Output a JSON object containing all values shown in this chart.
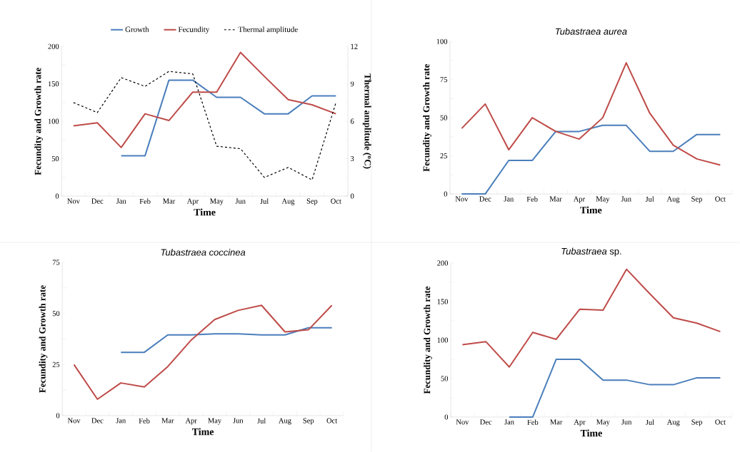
{
  "chart_data": [
    {
      "type": "line",
      "xlabel": "Time",
      "ylabel": "Fecundity and Growth rate",
      "y2label": "Thermal amplitude ($^{o}$C)",
      "categories": [
        "Nov",
        "Dec",
        "Jan",
        "Feb",
        "Mar",
        "Apr",
        "May",
        "Jun",
        "Jul",
        "Aug",
        "Sep",
        "Oct"
      ],
      "series": [
        {
          "name": "Growth",
          "color": "#4a7ebb",
          "values": [
            null,
            null,
            54,
            54,
            155,
            155,
            132,
            132,
            110,
            110,
            134,
            134
          ]
        },
        {
          "name": "Fecundity",
          "color": "#be4b48",
          "values": [
            94,
            98,
            65,
            110,
            101,
            139,
            139,
            192,
            160,
            129,
            122,
            110
          ]
        },
        {
          "name": "Thermal amplitude",
          "color": "#000000",
          "axis": "y2",
          "line_style": "dashed",
          "values": [
            7.5,
            6.7,
            9.5,
            8.8,
            10.0,
            9.8,
            4.0,
            3.8,
            1.5,
            2.3,
            1.3,
            7.5
          ]
        }
      ],
      "ylim": [
        0,
        200
      ],
      "yticks": [
        0,
        50,
        100,
        150,
        200
      ],
      "y2lim": [
        0,
        12
      ],
      "y2ticks": [
        0,
        3,
        6,
        9,
        12
      ],
      "legend": "top"
    },
    {
      "type": "line",
      "title": "Tubastraea aurea",
      "xlabel": "Time",
      "ylabel": "Fecundity and Growth rate",
      "categories": [
        "Nov",
        "Dec",
        "Jan",
        "Feb",
        "Mar",
        "Apr",
        "May",
        "Jun",
        "Jul",
        "Aug",
        "Sep",
        "Oct"
      ],
      "series": [
        {
          "color": "#4a7ebb",
          "values": [
            0,
            0,
            22,
            22,
            41,
            41,
            45,
            45,
            28,
            28,
            39,
            39
          ]
        },
        {
          "color": "#be4b48",
          "values": [
            43,
            59,
            29,
            50,
            41,
            36,
            50,
            86,
            53,
            32,
            23,
            19
          ]
        }
      ],
      "ylim": [
        0,
        100
      ],
      "yticks": [
        0,
        25,
        50,
        75,
        100
      ]
    },
    {
      "type": "line",
      "title": "Tubastraea coccinea",
      "xlabel": "Time",
      "ylabel": "Fecundity and Growth rate",
      "categories": [
        "Nov",
        "Dec",
        "Jan",
        "Feb",
        "Mar",
        "Apr",
        "May",
        "Jun",
        "Jul",
        "Aug",
        "Sep",
        "Oct"
      ],
      "series": [
        {
          "color": "#4a7ebb",
          "values": [
            null,
            null,
            31,
            31,
            39.5,
            39.5,
            40,
            40,
            39.5,
            39.5,
            43,
            43
          ]
        },
        {
          "color": "#be4b48",
          "values": [
            25,
            8,
            16,
            14,
            24,
            37,
            47,
            51.5,
            54,
            41,
            42,
            54
          ]
        }
      ],
      "ylim": [
        0,
        75
      ],
      "yticks": [
        0,
        25,
        50,
        75
      ]
    },
    {
      "type": "line",
      "title": "*Tubastraea* sp.",
      "xlabel": "Time",
      "ylabel": "Fecundity and Growth rate",
      "categories": [
        "Nov",
        "Dec",
        "Jan",
        "Feb",
        "Mar",
        "Apr",
        "May",
        "Jun",
        "Jul",
        "Aug",
        "Sep",
        "Oct"
      ],
      "series": [
        {
          "color": "#4a7ebb",
          "values": [
            null,
            null,
            0,
            0,
            75,
            75,
            48,
            48,
            42,
            42,
            51,
            51
          ]
        },
        {
          "color": "#be4b48",
          "values": [
            94,
            98,
            65,
            110,
            101,
            140,
            139,
            192,
            160,
            129,
            122,
            111
          ]
        }
      ],
      "ylim": [
        0,
        200
      ],
      "yticks": [
        0,
        50,
        100,
        150,
        200
      ]
    }
  ]
}
